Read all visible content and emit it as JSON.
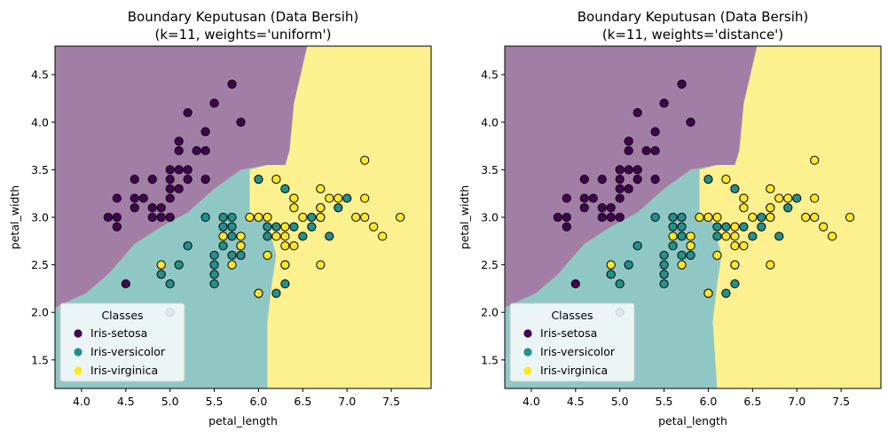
{
  "chart_data": [
    {
      "type": "scatter",
      "title": "Boundary Keputusan (Data Bersih)\n(k=11, weights='uniform')",
      "xlabel": "petal_length",
      "ylabel": "petal_width",
      "xlim": [
        3.7,
        7.95
      ],
      "ylim": [
        1.2,
        4.8
      ],
      "xticks": [
        "4.0",
        "4.5",
        "5.0",
        "5.5",
        "6.0",
        "6.5",
        "7.0",
        "7.5"
      ],
      "yticks": [
        "1.5",
        "2.0",
        "2.5",
        "3.0",
        "3.5",
        "4.0",
        "4.5"
      ],
      "legend": {
        "title": "Classes",
        "placement": "lower-left"
      },
      "regions": {
        "setosa_boundary": [
          [
            3.7,
            2.05
          ],
          [
            4.05,
            2.2
          ],
          [
            4.3,
            2.4
          ],
          [
            4.6,
            2.72
          ],
          [
            4.9,
            2.9
          ],
          [
            5.2,
            3.05
          ],
          [
            5.5,
            3.3
          ],
          [
            5.8,
            3.5
          ],
          [
            6.1,
            3.55
          ],
          [
            6.3,
            3.55
          ],
          [
            6.35,
            3.7
          ],
          [
            6.4,
            4.2
          ],
          [
            6.5,
            4.6
          ],
          [
            6.55,
            4.8
          ]
        ],
        "versicolor_boundary": [
          [
            5.9,
            3.5
          ],
          [
            5.9,
            3.05
          ],
          [
            6.1,
            2.95
          ],
          [
            6.2,
            2.6
          ],
          [
            6.15,
            2.3
          ],
          [
            6.1,
            1.9
          ],
          [
            6.1,
            1.2
          ]
        ]
      },
      "series": [
        {
          "name": "Iris-setosa",
          "color": "#440154",
          "points": [
            [
              4.3,
              3.0
            ],
            [
              4.4,
              3.0
            ],
            [
              4.4,
              2.9
            ],
            [
              4.4,
              3.2
            ],
            [
              4.5,
              2.3
            ],
            [
              4.6,
              3.1
            ],
            [
              4.6,
              3.2
            ],
            [
              4.6,
              3.4
            ],
            [
              4.7,
              3.2
            ],
            [
              4.8,
              3.0
            ],
            [
              4.8,
              3.1
            ],
            [
              4.8,
              3.4
            ],
            [
              4.9,
              3.0
            ],
            [
              4.9,
              3.1
            ],
            [
              5.0,
              3.0
            ],
            [
              5.0,
              3.2
            ],
            [
              5.0,
              3.3
            ],
            [
              5.0,
              3.4
            ],
            [
              5.0,
              3.5
            ],
            [
              5.1,
              3.3
            ],
            [
              5.1,
              3.5
            ],
            [
              5.1,
              3.7
            ],
            [
              5.1,
              3.8
            ],
            [
              5.2,
              3.4
            ],
            [
              5.2,
              3.5
            ],
            [
              5.2,
              4.1
            ],
            [
              5.3,
              3.7
            ],
            [
              5.4,
              3.4
            ],
            [
              5.4,
              3.7
            ],
            [
              5.4,
              3.9
            ],
            [
              5.5,
              4.2
            ],
            [
              5.7,
              4.4
            ],
            [
              5.8,
              4.0
            ]
          ]
        },
        {
          "name": "Iris-versicolor",
          "color": "#21918c",
          "points": [
            [
              4.9,
              2.4
            ],
            [
              5.0,
              2.0
            ],
            [
              5.0,
              2.3
            ],
            [
              5.1,
              2.5
            ],
            [
              5.2,
              2.7
            ],
            [
              5.4,
              3.0
            ],
            [
              5.5,
              2.3
            ],
            [
              5.5,
              2.4
            ],
            [
              5.5,
              2.5
            ],
            [
              5.5,
              2.6
            ],
            [
              5.6,
              2.7
            ],
            [
              5.6,
              2.9
            ],
            [
              5.6,
              3.0
            ],
            [
              5.7,
              2.6
            ],
            [
              5.7,
              2.8
            ],
            [
              5.7,
              2.9
            ],
            [
              5.7,
              3.0
            ],
            [
              5.8,
              2.6
            ],
            [
              5.8,
              2.7
            ],
            [
              6.0,
              2.2
            ],
            [
              6.0,
              3.4
            ],
            [
              6.1,
              2.8
            ],
            [
              6.1,
              2.9
            ],
            [
              6.2,
              2.2
            ],
            [
              6.2,
              2.9
            ],
            [
              6.3,
              2.3
            ],
            [
              6.3,
              2.5
            ],
            [
              6.3,
              3.3
            ],
            [
              6.4,
              2.9
            ],
            [
              6.4,
              3.2
            ],
            [
              6.5,
              2.8
            ],
            [
              6.6,
              2.9
            ],
            [
              6.6,
              3.0
            ],
            [
              6.7,
              3.0
            ],
            [
              6.7,
              3.1
            ],
            [
              6.8,
              2.8
            ],
            [
              6.9,
              3.1
            ],
            [
              7.0,
              3.2
            ]
          ]
        },
        {
          "name": "Iris-virginica",
          "color": "#fde725",
          "points": [
            [
              4.9,
              2.5
            ],
            [
              5.6,
              2.8
            ],
            [
              5.7,
              2.5
            ],
            [
              5.8,
              2.7
            ],
            [
              5.8,
              2.8
            ],
            [
              5.9,
              3.0
            ],
            [
              6.0,
              2.2
            ],
            [
              6.0,
              3.0
            ],
            [
              6.1,
              2.6
            ],
            [
              6.1,
              3.0
            ],
            [
              6.2,
              2.8
            ],
            [
              6.2,
              3.4
            ],
            [
              6.3,
              2.5
            ],
            [
              6.3,
              2.7
            ],
            [
              6.3,
              2.8
            ],
            [
              6.3,
              2.9
            ],
            [
              6.4,
              2.7
            ],
            [
              6.4,
              3.1
            ],
            [
              6.4,
              3.2
            ],
            [
              6.5,
              3.0
            ],
            [
              6.7,
              2.5
            ],
            [
              6.7,
              3.0
            ],
            [
              6.7,
              3.1
            ],
            [
              6.7,
              3.3
            ],
            [
              6.8,
              3.2
            ],
            [
              6.9,
              3.2
            ],
            [
              7.1,
              3.0
            ],
            [
              7.2,
              3.0
            ],
            [
              7.2,
              3.2
            ],
            [
              7.2,
              3.6
            ],
            [
              7.3,
              2.9
            ],
            [
              7.4,
              2.8
            ],
            [
              7.6,
              3.0
            ]
          ]
        }
      ]
    },
    {
      "type": "scatter",
      "title": "Boundary Keputusan (Data Bersih)\n(k=11, weights='distance')",
      "xlabel": "petal_length",
      "ylabel": "petal_width",
      "xlim": [
        3.7,
        7.95
      ],
      "ylim": [
        1.2,
        4.8
      ],
      "xticks": [
        "4.0",
        "4.5",
        "5.0",
        "5.5",
        "6.0",
        "6.5",
        "7.0",
        "7.5"
      ],
      "yticks": [
        "1.5",
        "2.0",
        "2.5",
        "3.0",
        "3.5",
        "4.0",
        "4.5"
      ],
      "legend": {
        "title": "Classes",
        "placement": "lower-left"
      },
      "regions": {
        "setosa_boundary": [
          [
            3.7,
            2.05
          ],
          [
            4.05,
            2.2
          ],
          [
            4.3,
            2.4
          ],
          [
            4.6,
            2.72
          ],
          [
            4.9,
            2.9
          ],
          [
            5.2,
            3.05
          ],
          [
            5.5,
            3.3
          ],
          [
            5.8,
            3.5
          ],
          [
            6.1,
            3.55
          ],
          [
            6.3,
            3.55
          ],
          [
            6.35,
            3.7
          ],
          [
            6.4,
            4.2
          ],
          [
            6.5,
            4.6
          ],
          [
            6.55,
            4.8
          ]
        ],
        "versicolor_boundary": [
          [
            5.9,
            3.5
          ],
          [
            5.9,
            3.05
          ],
          [
            6.05,
            2.95
          ],
          [
            6.15,
            2.6
          ],
          [
            6.1,
            2.3
          ],
          [
            6.05,
            1.9
          ],
          [
            6.1,
            1.2
          ]
        ]
      },
      "series": [
        {
          "name": "Iris-setosa",
          "color": "#440154",
          "points": [
            [
              4.3,
              3.0
            ],
            [
              4.4,
              3.0
            ],
            [
              4.4,
              2.9
            ],
            [
              4.4,
              3.2
            ],
            [
              4.5,
              2.3
            ],
            [
              4.6,
              3.1
            ],
            [
              4.6,
              3.2
            ],
            [
              4.6,
              3.4
            ],
            [
              4.7,
              3.2
            ],
            [
              4.8,
              3.0
            ],
            [
              4.8,
              3.1
            ],
            [
              4.8,
              3.4
            ],
            [
              4.9,
              3.0
            ],
            [
              4.9,
              3.1
            ],
            [
              5.0,
              3.0
            ],
            [
              5.0,
              3.2
            ],
            [
              5.0,
              3.3
            ],
            [
              5.0,
              3.4
            ],
            [
              5.0,
              3.5
            ],
            [
              5.1,
              3.3
            ],
            [
              5.1,
              3.5
            ],
            [
              5.1,
              3.7
            ],
            [
              5.1,
              3.8
            ],
            [
              5.2,
              3.4
            ],
            [
              5.2,
              3.5
            ],
            [
              5.2,
              4.1
            ],
            [
              5.3,
              3.7
            ],
            [
              5.4,
              3.4
            ],
            [
              5.4,
              3.7
            ],
            [
              5.4,
              3.9
            ],
            [
              5.5,
              4.2
            ],
            [
              5.7,
              4.4
            ],
            [
              5.8,
              4.0
            ]
          ]
        },
        {
          "name": "Iris-versicolor",
          "color": "#21918c",
          "points": [
            [
              4.9,
              2.4
            ],
            [
              5.0,
              2.0
            ],
            [
              5.0,
              2.3
            ],
            [
              5.1,
              2.5
            ],
            [
              5.2,
              2.7
            ],
            [
              5.4,
              3.0
            ],
            [
              5.5,
              2.3
            ],
            [
              5.5,
              2.4
            ],
            [
              5.5,
              2.5
            ],
            [
              5.5,
              2.6
            ],
            [
              5.6,
              2.7
            ],
            [
              5.6,
              2.9
            ],
            [
              5.6,
              3.0
            ],
            [
              5.7,
              2.6
            ],
            [
              5.7,
              2.8
            ],
            [
              5.7,
              2.9
            ],
            [
              5.7,
              3.0
            ],
            [
              5.8,
              2.6
            ],
            [
              5.8,
              2.7
            ],
            [
              6.0,
              2.2
            ],
            [
              6.0,
              3.4
            ],
            [
              6.1,
              2.8
            ],
            [
              6.1,
              2.9
            ],
            [
              6.2,
              2.2
            ],
            [
              6.2,
              2.9
            ],
            [
              6.3,
              2.3
            ],
            [
              6.3,
              2.5
            ],
            [
              6.3,
              3.3
            ],
            [
              6.4,
              2.9
            ],
            [
              6.4,
              3.2
            ],
            [
              6.5,
              2.8
            ],
            [
              6.6,
              2.9
            ],
            [
              6.6,
              3.0
            ],
            [
              6.7,
              3.0
            ],
            [
              6.7,
              3.1
            ],
            [
              6.8,
              2.8
            ],
            [
              6.9,
              3.1
            ],
            [
              7.0,
              3.2
            ]
          ]
        },
        {
          "name": "Iris-virginica",
          "color": "#fde725",
          "points": [
            [
              4.9,
              2.5
            ],
            [
              5.6,
              2.8
            ],
            [
              5.7,
              2.5
            ],
            [
              5.8,
              2.7
            ],
            [
              5.8,
              2.8
            ],
            [
              5.9,
              3.0
            ],
            [
              6.0,
              2.2
            ],
            [
              6.0,
              3.0
            ],
            [
              6.1,
              2.6
            ],
            [
              6.1,
              3.0
            ],
            [
              6.2,
              2.8
            ],
            [
              6.2,
              3.4
            ],
            [
              6.3,
              2.5
            ],
            [
              6.3,
              2.7
            ],
            [
              6.3,
              2.8
            ],
            [
              6.3,
              2.9
            ],
            [
              6.4,
              2.7
            ],
            [
              6.4,
              3.1
            ],
            [
              6.4,
              3.2
            ],
            [
              6.5,
              3.0
            ],
            [
              6.7,
              2.5
            ],
            [
              6.7,
              3.0
            ],
            [
              6.7,
              3.1
            ],
            [
              6.7,
              3.3
            ],
            [
              6.8,
              3.2
            ],
            [
              6.9,
              3.2
            ],
            [
              7.1,
              3.0
            ],
            [
              7.2,
              3.0
            ],
            [
              7.2,
              3.2
            ],
            [
              7.2,
              3.6
            ],
            [
              7.3,
              2.9
            ],
            [
              7.4,
              2.8
            ],
            [
              7.6,
              3.0
            ]
          ]
        }
      ]
    }
  ],
  "region_colors": {
    "setosa": "#a27ea6",
    "versicolor": "#8fc7c5",
    "virginica": "#fdf08e"
  }
}
